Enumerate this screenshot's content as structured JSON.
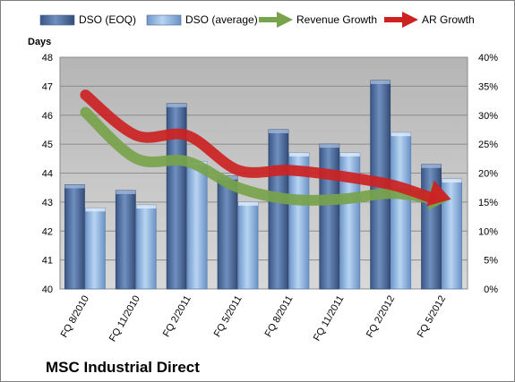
{
  "chart_data": {
    "type": "bar",
    "categories": [
      "FQ 8/2010",
      "FQ 11/2010",
      "FQ 2/2011",
      "FQ 5/2011",
      "FQ 8/2011",
      "FQ 11/2011",
      "FQ 2/2012",
      "FQ 5/2012"
    ],
    "series": [
      {
        "name": "DSO (EOQ)",
        "axis": "left",
        "values": [
          43.6,
          43.4,
          46.4,
          43.9,
          45.5,
          45.0,
          47.2,
          44.3
        ],
        "color": "#4f6f9f"
      },
      {
        "name": "DSO (average)",
        "axis": "left",
        "values": [
          42.8,
          42.9,
          44.4,
          43.0,
          44.7,
          44.7,
          45.4,
          43.8
        ],
        "color": "#8cb4e2"
      }
    ],
    "lines": [
      {
        "name": "Revenue Growth",
        "axis": "right",
        "values": [
          30.5,
          22.5,
          22.0,
          17.5,
          15.5,
          15.5,
          16.5,
          15.5
        ],
        "color": "#77a34b",
        "arrow": true
      },
      {
        "name": "AR Growth",
        "axis": "right",
        "values": [
          33.5,
          26.5,
          26.5,
          20.5,
          20.5,
          19.5,
          18.0,
          15.5
        ],
        "color": "#cc2222",
        "arrow": true
      }
    ],
    "ylabel": "Days",
    "ylim": [
      40,
      48
    ],
    "y_ticks": [
      "40",
      "41",
      "42",
      "43",
      "44",
      "45",
      "46",
      "47",
      "48"
    ],
    "y2lim": [
      0,
      40
    ],
    "y2_ticks": [
      "0%",
      "5%",
      "10%",
      "15%",
      "20%",
      "25%",
      "30%",
      "35%",
      "40%"
    ],
    "grid": true,
    "legend_position": "top",
    "plot_background": "#c0c0c0"
  },
  "company_name": "MSC Industrial Direct"
}
